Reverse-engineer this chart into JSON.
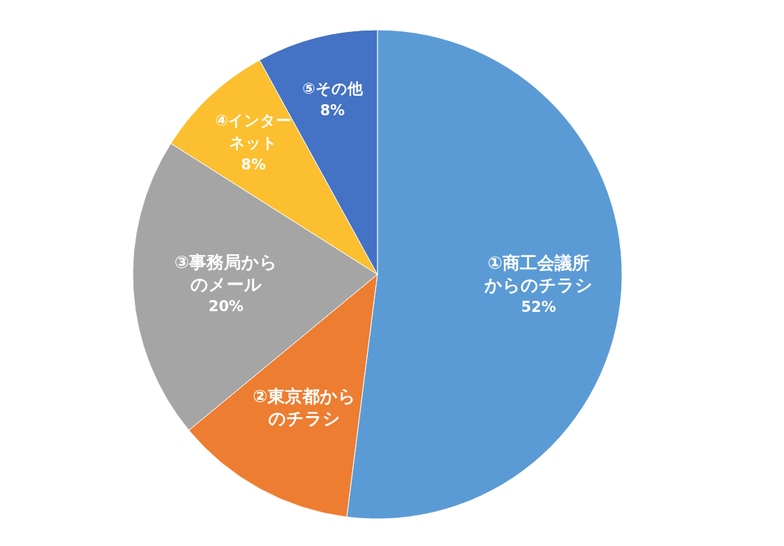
{
  "chart_data": {
    "type": "pie",
    "categories": [
      "①商工会議所からのチラシ",
      "②東京都からのチラシ",
      "③事務局からのメール",
      "④インターネット",
      "⑤その他"
    ],
    "values": [
      52,
      12,
      20,
      8,
      8
    ],
    "colors": [
      "#5b9bd5",
      "#ed7d31",
      "#a5a5a5",
      "#fbbf2f",
      "#4472c4"
    ],
    "value_labels": [
      "52%",
      null,
      "20%",
      "8%",
      "8%"
    ],
    "legend": false
  }
}
